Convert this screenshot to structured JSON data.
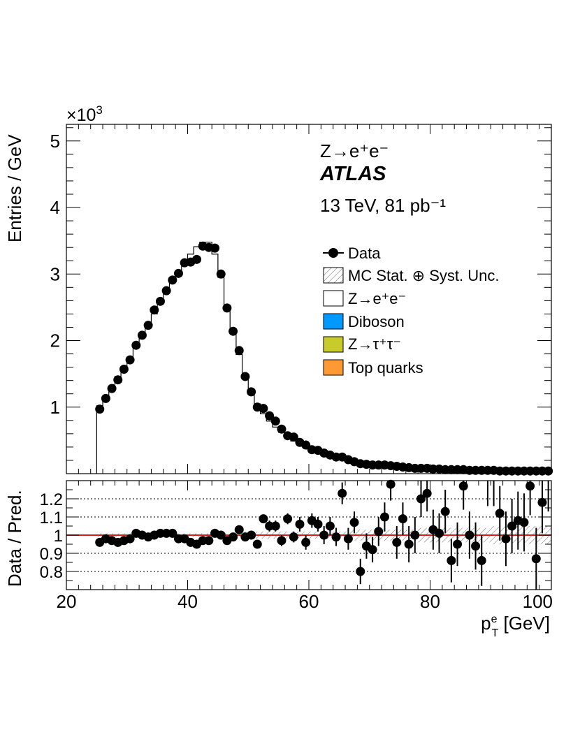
{
  "chart_data": [
    {
      "type": "histogram",
      "panel": "main",
      "scale_label": "×10",
      "scale_exponent": "3",
      "ylabel": "Entries / GeV",
      "xlim": [
        20,
        100
      ],
      "ylim": [
        0,
        5.25
      ],
      "y_ticks": [
        1,
        2,
        3,
        4,
        5
      ],
      "bin_lo": [
        25,
        26,
        27,
        28,
        29,
        30,
        31,
        32,
        33,
        34,
        35,
        36,
        37,
        38,
        39,
        40,
        41,
        42,
        43,
        44,
        45,
        46,
        47,
        48,
        49,
        50,
        51,
        52,
        53,
        54,
        55,
        56,
        57,
        58,
        59,
        60,
        61,
        62,
        63,
        64,
        65,
        66,
        67,
        68,
        69,
        70,
        71,
        72,
        73,
        74,
        75,
        76,
        77,
        78,
        79,
        80,
        81,
        82,
        83,
        84,
        85,
        86,
        87,
        88,
        89,
        90,
        91,
        92,
        93,
        94,
        95,
        96,
        97,
        98,
        99
      ],
      "series": [
        {
          "name": "Data",
          "values": [
            0.97,
            1.13,
            1.28,
            1.41,
            1.57,
            1.71,
            1.93,
            2.08,
            2.23,
            2.46,
            2.59,
            2.75,
            2.91,
            3.01,
            3.17,
            3.18,
            3.22,
            3.42,
            3.4,
            3.39,
            3.0,
            2.49,
            2.14,
            1.85,
            1.46,
            1.23,
            1.0,
            0.98,
            0.87,
            0.79,
            0.67,
            0.57,
            0.55,
            0.47,
            0.43,
            0.36,
            0.35,
            0.31,
            0.28,
            0.25,
            0.25,
            0.21,
            0.18,
            0.15,
            0.14,
            0.13,
            0.13,
            0.13,
            0.12,
            0.11,
            0.1,
            0.09,
            0.08,
            0.08,
            0.08,
            0.07,
            0.07,
            0.06,
            0.06,
            0.06,
            0.06,
            0.05,
            0.05,
            0.05,
            0.05,
            0.05,
            0.04,
            0.04,
            0.04,
            0.04,
            0.04,
            0.04,
            0.04,
            0.04,
            0.04
          ]
        },
        {
          "name": "Z→e⁺e⁻",
          "values": [
            1.02,
            1.15,
            1.31,
            1.46,
            1.61,
            1.75,
            1.91,
            2.07,
            2.23,
            2.4,
            2.56,
            2.72,
            2.88,
            3.03,
            3.18,
            3.3,
            3.41,
            3.48,
            3.48,
            3.3,
            2.95,
            2.5,
            2.13,
            1.79,
            1.49,
            1.24,
            1.05,
            0.9,
            0.79,
            0.7,
            0.62,
            0.55,
            0.49,
            0.44,
            0.4,
            0.36,
            0.33,
            0.3,
            0.27,
            0.25,
            0.23,
            0.21,
            0.19,
            0.17,
            0.16,
            0.15,
            0.14,
            0.13,
            0.12,
            0.11,
            0.1,
            0.09,
            0.09,
            0.08,
            0.08,
            0.07,
            0.07,
            0.06,
            0.06,
            0.06,
            0.06,
            0.05,
            0.05,
            0.05,
            0.05,
            0.05,
            0.04,
            0.04,
            0.04,
            0.04,
            0.04,
            0.04,
            0.04,
            0.04,
            0.04
          ]
        }
      ],
      "legend": [
        {
          "label": "Data",
          "style": "marker",
          "color": "#000000"
        },
        {
          "label": "MC Stat. ⊕ Syst. Unc.",
          "style": "hatch",
          "color": "#555555"
        },
        {
          "label": "Z→e⁺e⁻",
          "style": "box",
          "color": "#ffffff"
        },
        {
          "label": "Diboson",
          "style": "box",
          "color": "#0099ff"
        },
        {
          "label": "Z→τ⁺τ⁻",
          "style": "box",
          "color": "#c8cc2a"
        },
        {
          "label": "Top quarks",
          "style": "box",
          "color": "#ff9933"
        }
      ],
      "annotations": {
        "process": "Z→e⁺e⁻",
        "experiment": "ATLAS",
        "energy_lumi": "13 TeV, 81 pb⁻¹"
      }
    },
    {
      "type": "scatter",
      "panel": "ratio",
      "ylabel": "Data / Pred.",
      "xlabel": "pTe [GeV]",
      "xlim": [
        20,
        100
      ],
      "ylim": [
        0.7,
        1.3
      ],
      "y_ticks": [
        0.8,
        0.9,
        1,
        1.1,
        1.2
      ],
      "x_ticks": [
        20,
        40,
        60,
        80,
        100
      ],
      "reference_line": 1,
      "reference_color": "#d21e1e",
      "ratio": [
        0.96,
        0.98,
        0.97,
        0.96,
        0.97,
        0.98,
        1.01,
        1.0,
        0.99,
        1.0,
        1.01,
        1.01,
        1.01,
        0.98,
        0.98,
        0.96,
        0.95,
        0.97,
        0.97,
        1.01,
        1.0,
        0.97,
        0.99,
        1.03,
        0.99,
        1.0,
        0.95,
        1.09,
        1.05,
        1.05,
        0.97,
        1.09,
        0.99,
        1.06,
        0.96,
        1.08,
        1.06,
        1.0,
        1.05,
        0.99,
        1.23,
        0.98,
        1.07,
        0.8,
        0.94,
        0.92,
        1.02,
        1.1,
        1.28,
        0.96,
        1.09,
        0.95,
        1.0,
        1.2,
        1.23,
        1.03,
        1.01,
        1.13,
        0.86,
        0.95,
        1.27,
        1.0,
        0.94,
        0.86,
        1.3,
        1.3,
        1.12,
        0.98,
        1.05,
        1.08,
        1.07,
        1.27,
        0.87,
        1.18,
        1.3
      ],
      "ratio_err": [
        0.02,
        0.02,
        0.02,
        0.02,
        0.02,
        0.02,
        0.02,
        0.02,
        0.02,
        0.02,
        0.02,
        0.02,
        0.02,
        0.02,
        0.02,
        0.02,
        0.02,
        0.02,
        0.02,
        0.02,
        0.02,
        0.02,
        0.02,
        0.02,
        0.02,
        0.02,
        0.02,
        0.02,
        0.03,
        0.03,
        0.03,
        0.03,
        0.03,
        0.04,
        0.04,
        0.04,
        0.04,
        0.05,
        0.05,
        0.05,
        0.06,
        0.06,
        0.06,
        0.07,
        0.07,
        0.07,
        0.08,
        0.08,
        0.09,
        0.09,
        0.09,
        0.1,
        0.1,
        0.1,
        0.1,
        0.11,
        0.11,
        0.12,
        0.12,
        0.12,
        0.13,
        0.13,
        0.13,
        0.14,
        0.14,
        0.14,
        0.15,
        0.15,
        0.15,
        0.16,
        0.16,
        0.16,
        0.17,
        0.17,
        0.17
      ],
      "band_err": [
        0.01,
        0.01,
        0.01,
        0.01,
        0.01,
        0.01,
        0.01,
        0.01,
        0.01,
        0.01,
        0.01,
        0.01,
        0.01,
        0.01,
        0.01,
        0.01,
        0.01,
        0.01,
        0.01,
        0.01,
        0.01,
        0.01,
        0.01,
        0.01,
        0.02,
        0.02,
        0.02,
        0.02,
        0.02,
        0.02,
        0.02,
        0.02,
        0.02,
        0.02,
        0.02,
        0.02,
        0.02,
        0.02,
        0.02,
        0.02,
        0.02,
        0.02,
        0.03,
        0.03,
        0.03,
        0.03,
        0.03,
        0.03,
        0.03,
        0.03,
        0.03,
        0.03,
        0.03,
        0.04,
        0.04,
        0.04,
        0.04,
        0.04,
        0.04,
        0.04,
        0.04,
        0.04,
        0.04,
        0.04,
        0.04,
        0.05,
        0.05,
        0.05,
        0.05,
        0.05,
        0.05,
        0.05,
        0.05,
        0.05,
        0.05
      ]
    }
  ]
}
